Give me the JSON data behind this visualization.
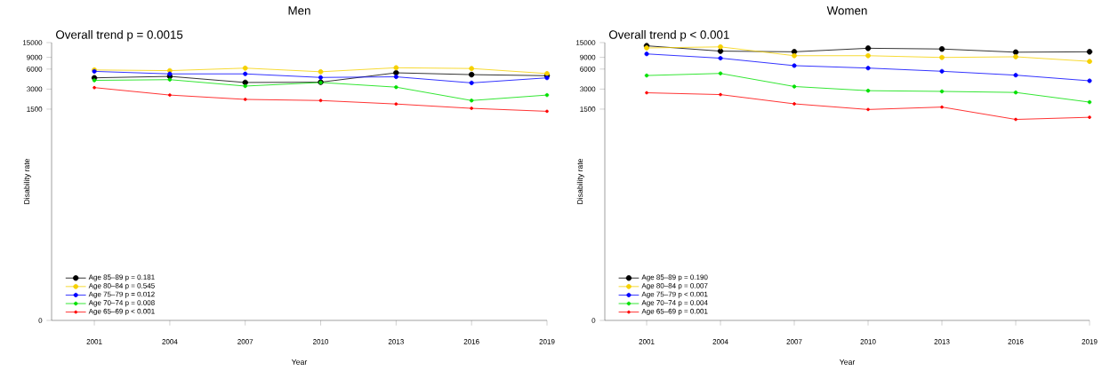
{
  "chart_data": [
    {
      "type": "line",
      "title": "Men",
      "xlabel": "Year",
      "ylabel": "Disability rate",
      "annotations": [
        "Overall trend p = 0.0015"
      ],
      "x": [
        2001,
        2004,
        2007,
        2010,
        2013,
        2016,
        2019
      ],
      "xlim": [
        1999.3,
        2019
      ],
      "xticks": [
        2001,
        2004,
        2007,
        2010,
        2013,
        2016,
        2019
      ],
      "ylim": [
        0,
        15000
      ],
      "yticks": [
        0,
        1500,
        3000,
        6000,
        9000,
        15000
      ],
      "log": true,
      "grid": false,
      "legend": "bottom left",
      "marker": "circle",
      "line_style": "solid",
      "series": [
        {
          "name": "Age 85–89 p = 0.181",
          "color": "#000000",
          "values": [
            4430,
            4660,
            3770,
            3810,
            5270,
            4950,
            4770
          ]
        },
        {
          "name": "Age 80–84 p = 0.545",
          "color": "#f5d000",
          "values": [
            5820,
            5680,
            6200,
            5470,
            6280,
            6120,
            5140
          ]
        },
        {
          "name": "Age 75–79 p = 0.012",
          "color": "#0000ff",
          "values": [
            5540,
            5080,
            5080,
            4490,
            4590,
            3720,
            4430
          ]
        },
        {
          "name": "Age 70–74 p = 0.008",
          "color": "#00e000",
          "values": [
            4060,
            4160,
            3330,
            3770,
            3210,
            2020,
            2440
          ]
        },
        {
          "name": "Age 65–69 p < 0.001",
          "color": "#ff0000",
          "values": [
            3160,
            2440,
            2100,
            2020,
            1790,
            1540,
            1390
          ]
        }
      ]
    },
    {
      "type": "line",
      "title": "Women",
      "xlabel": "Year",
      "ylabel": "Disability rate",
      "annotations": [
        "Overall trend p < 0.001"
      ],
      "x": [
        2001,
        2004,
        2007,
        2010,
        2013,
        2016,
        2019
      ],
      "xlim": [
        1999.3,
        2019
      ],
      "xticks": [
        2001,
        2004,
        2007,
        2010,
        2013,
        2016,
        2019
      ],
      "ylim": [
        0,
        15000
      ],
      "yticks": [
        0,
        1500,
        3000,
        6000,
        9000,
        15000
      ],
      "log": true,
      "grid": false,
      "legend": "bottom left",
      "marker": "circle",
      "line_style": "solid",
      "series": [
        {
          "name": "Age 85–89 p = 0.190",
          "color": "#000000",
          "values": [
            13430,
            11170,
            10910,
            12330,
            12020,
            10760,
            10910
          ]
        },
        {
          "name": "Age 80–84 p = 0.007",
          "color": "#f5d000",
          "values": [
            12470,
            12940,
            9530,
            9530,
            8970,
            9180,
            7830
          ]
        },
        {
          "name": "Age 75–79 p < 0.001",
          "color": "#0000ff",
          "values": [
            10140,
            8750,
            6760,
            6210,
            5560,
            4860,
            4000
          ]
        },
        {
          "name": "Age 70–74 p = 0.004",
          "color": "#00e000",
          "values": [
            4800,
            5160,
            3280,
            2840,
            2770,
            2670,
            1910
          ]
        },
        {
          "name": "Age 65–69 p = 0.001",
          "color": "#ff0000",
          "values": [
            2640,
            2480,
            1800,
            1480,
            1610,
            1050,
            1130
          ]
        }
      ]
    }
  ]
}
